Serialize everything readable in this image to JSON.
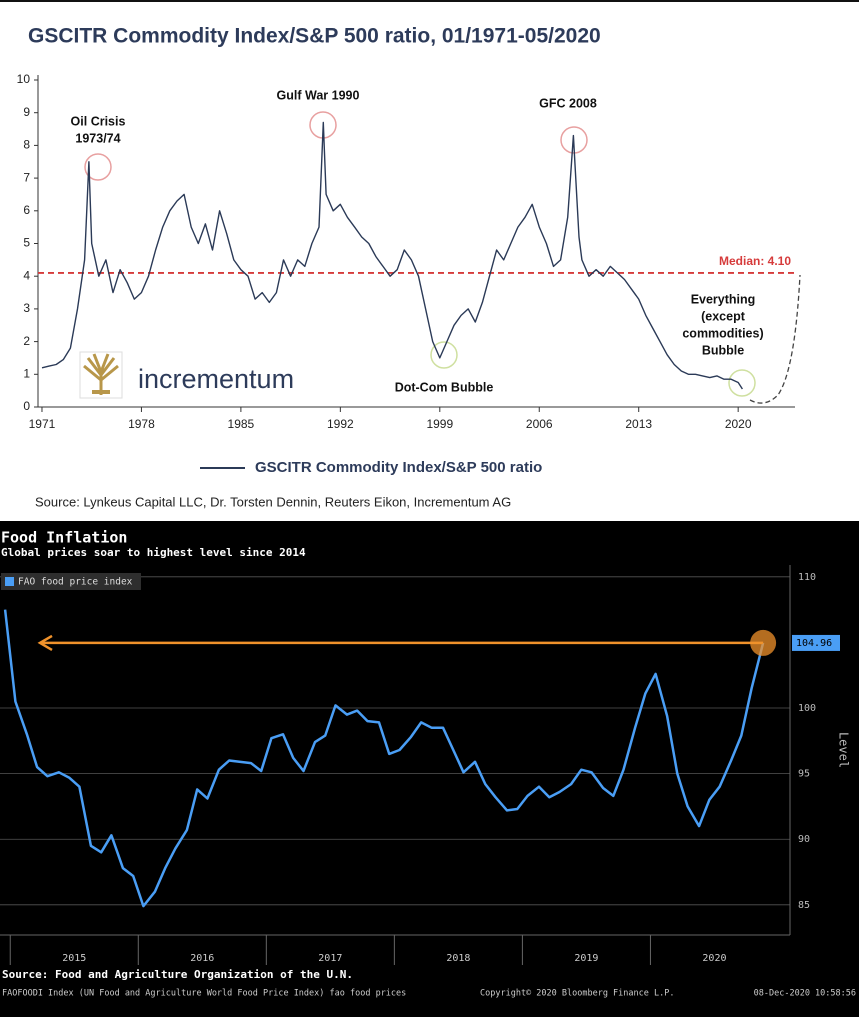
{
  "chart_data": [
    {
      "type": "line",
      "title": "GSCITR Commodity Index/S&P 500 ratio, 01/1971-05/2020",
      "x": [
        1971,
        1971.5,
        1972,
        1972.5,
        1973,
        1973.5,
        1974,
        1974.3,
        1974.5,
        1975,
        1975.5,
        1976,
        1976.5,
        1977,
        1977.5,
        1978,
        1978.5,
        1979,
        1979.5,
        1980,
        1980.5,
        1981,
        1981.5,
        1982,
        1982.5,
        1983,
        1983.5,
        1984,
        1984.5,
        1985,
        1985.5,
        1986,
        1986.5,
        1987,
        1987.5,
        1988,
        1988.5,
        1989,
        1989.5,
        1990,
        1990.5,
        1990.8,
        1991,
        1991.5,
        1992,
        1992.5,
        1993,
        1993.5,
        1994,
        1994.5,
        1995,
        1995.5,
        1996,
        1996.5,
        1997,
        1997.5,
        1998,
        1998.5,
        1999,
        1999.5,
        2000,
        2000.5,
        2001,
        2001.5,
        2002,
        2002.5,
        2003,
        2003.5,
        2004,
        2004.5,
        2005,
        2005.5,
        2006,
        2006.5,
        2007,
        2007.5,
        2008,
        2008.4,
        2008.8,
        2009,
        2009.5,
        2010,
        2010.5,
        2011,
        2011.5,
        2012,
        2012.5,
        2013,
        2013.5,
        2014,
        2014.5,
        2015,
        2015.5,
        2016,
        2016.5,
        2017,
        2017.5,
        2018,
        2018.5,
        2019,
        2019.5,
        2020,
        2020.3
      ],
      "series": [
        {
          "name": "GSCITR Commodity Index/S&P 500 ratio",
          "color": "#2b3a57",
          "values": [
            1.2,
            1.25,
            1.3,
            1.45,
            1.8,
            3.0,
            4.5,
            7.5,
            5.0,
            4.0,
            4.5,
            3.5,
            4.2,
            3.8,
            3.3,
            3.5,
            4.0,
            4.8,
            5.5,
            6.0,
            6.3,
            6.5,
            5.5,
            5.0,
            5.6,
            4.8,
            6.0,
            5.3,
            4.5,
            4.2,
            4.0,
            3.3,
            3.5,
            3.2,
            3.5,
            4.5,
            4.0,
            4.5,
            4.3,
            5.0,
            5.5,
            8.7,
            6.5,
            6.0,
            6.2,
            5.8,
            5.5,
            5.2,
            5.0,
            4.6,
            4.3,
            4.0,
            4.2,
            4.8,
            4.5,
            4.0,
            3.0,
            2.0,
            1.5,
            2.0,
            2.5,
            2.8,
            3.0,
            2.6,
            3.2,
            4.0,
            4.8,
            4.5,
            5.0,
            5.5,
            5.8,
            6.2,
            5.5,
            5.0,
            4.3,
            4.5,
            5.8,
            8.3,
            5.2,
            4.5,
            4.0,
            4.2,
            4.0,
            4.3,
            4.1,
            3.9,
            3.6,
            3.3,
            2.8,
            2.4,
            2.0,
            1.6,
            1.3,
            1.1,
            1.0,
            1.0,
            0.95,
            0.9,
            0.95,
            0.85,
            0.85,
            0.75,
            0.55
          ]
        }
      ],
      "xlim": [
        1970.72,
        2024
      ],
      "xticks": [
        1971,
        1978,
        1985,
        1992,
        1999,
        2006,
        2013,
        2020
      ],
      "ylim": [
        0,
        10
      ],
      "yticks": [
        0,
        1,
        2,
        3,
        4,
        5,
        6,
        7,
        8,
        9,
        10
      ],
      "median": {
        "value": 4.1,
        "label": "Median: 4.10"
      },
      "annotations": [
        {
          "lines": [
            "Oil Crisis",
            "1973/74"
          ]
        },
        {
          "lines": [
            "Gulf War 1990"
          ]
        },
        {
          "lines": [
            "GFC 2008"
          ]
        },
        {
          "lines": [
            "Dot-Com Bubble"
          ]
        },
        {
          "lines": [
            "Everything",
            "(except",
            "commodities)",
            "Bubble"
          ]
        }
      ],
      "logo_text": "incrementum",
      "source": "Source: Lynkeus Capital LLC, Dr. Torsten Dennin, Reuters Eikon, Incrementum AG"
    },
    {
      "type": "line",
      "title": "Food Inflation",
      "subtitle": "Global prices soar to highest level since 2014",
      "x": [
        2014.96,
        2015.04,
        2015.13,
        2015.21,
        2015.29,
        2015.38,
        2015.46,
        2015.54,
        2015.63,
        2015.71,
        2015.79,
        2015.88,
        2015.96,
        2016.04,
        2016.13,
        2016.21,
        2016.29,
        2016.38,
        2016.46,
        2016.54,
        2016.63,
        2016.71,
        2016.79,
        2016.88,
        2016.96,
        2017.04,
        2017.13,
        2017.21,
        2017.29,
        2017.38,
        2017.46,
        2017.54,
        2017.63,
        2017.71,
        2017.79,
        2017.88,
        2017.96,
        2018.04,
        2018.13,
        2018.21,
        2018.29,
        2018.38,
        2018.46,
        2018.54,
        2018.63,
        2018.71,
        2018.79,
        2018.88,
        2018.96,
        2019.04,
        2019.13,
        2019.21,
        2019.29,
        2019.38,
        2019.46,
        2019.54,
        2019.63,
        2019.71,
        2019.79,
        2019.88,
        2019.96,
        2020.04,
        2020.13,
        2020.21,
        2020.29,
        2020.38,
        2020.46,
        2020.54,
        2020.63,
        2020.71,
        2020.79,
        2020.88
      ],
      "series": [
        {
          "name": "FAO food price index",
          "color": "#4a9ef5",
          "values": [
            107.5,
            100.5,
            98,
            95.5,
            94.8,
            95.1,
            94.7,
            94.0,
            89.5,
            89.0,
            90.3,
            87.8,
            87.2,
            84.9,
            86.0,
            87.8,
            89.3,
            90.7,
            93.8,
            93.1,
            95.3,
            96.0,
            95.9,
            95.8,
            95.2,
            97.7,
            98.0,
            96.2,
            95.2,
            97.4,
            97.9,
            100.2,
            99.5,
            99.8,
            99.0,
            98.9,
            96.5,
            96.8,
            97.8,
            98.9,
            98.5,
            98.5,
            96.8,
            95.1,
            95.9,
            94.2,
            93.2,
            92.2,
            92.3,
            93.3,
            94.0,
            93.2,
            93.6,
            94.2,
            95.3,
            95.1,
            93.9,
            93.3,
            95.3,
            98.5,
            101.1,
            102.6,
            99.4,
            95.0,
            92.5,
            91.0,
            93.0,
            94.0,
            96.0,
            97.9,
            101.5,
            104.96
          ]
        }
      ],
      "xlim": [
        2014.92,
        2021.09
      ],
      "xticks": [
        2015,
        2016,
        2017,
        2018,
        2019,
        2020
      ],
      "ylim": [
        82.7,
        110.9
      ],
      "yticks": [
        85,
        90,
        95,
        100,
        110
      ],
      "y_label": "Level",
      "source": "Source: Food and Agriculture Organization of the U.N.",
      "footnote": "FAOFOODI Index (UN Food and Agriculture World Food Price Index) fao food prices",
      "copyright": "Copyright© 2020 Bloomberg Finance L.P.",
      "timestamp": "08-Dec-2020 10:58:56"
    }
  ]
}
